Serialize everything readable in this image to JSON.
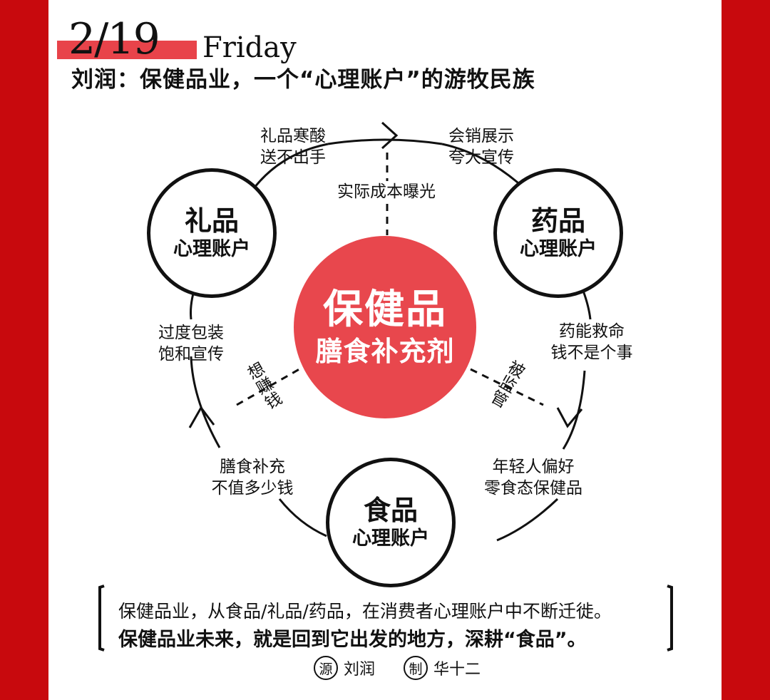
{
  "header": {
    "date": "2/19",
    "weekday": "Friday",
    "title": "刘润：保健品业，一个“心理账户”的游牧民族"
  },
  "center": {
    "title": "保健品",
    "subtitle": "膳食补充剂"
  },
  "nodes": {
    "gift": {
      "title": "礼品",
      "subtitle": "心理账户"
    },
    "medicine": {
      "title": "药品",
      "subtitle": "心理账户"
    },
    "food": {
      "title": "食品",
      "subtitle": "心理账户"
    }
  },
  "labels": {
    "gift_to_medicine": [
      "礼品寒酸",
      "送不出手"
    ],
    "medicine_from_gift": [
      "会销展示",
      "夸大宣传"
    ],
    "top_dashed": "实际成本曝光",
    "medicine_to_food": [
      "药能救命",
      "钱不是个事"
    ],
    "food_from_medicine": [
      "年轻人偏好",
      "零食态保健品"
    ],
    "food_to_gift": [
      "膳食补充",
      "不值多少钱"
    ],
    "gift_from_food": [
      "过度包装",
      "饱和宣传"
    ],
    "left_dashed": "想赚钱",
    "right_dashed": "被监管"
  },
  "summary": {
    "line1": "保健品业，从食品/礼品/药品，在消费者心理账户中不断迁徙。",
    "line2": "保健品业未来，就是回到它出发的地方，深耕“食品”。"
  },
  "credits": {
    "source_mark": "源",
    "source": "刘润",
    "maker_mark": "制",
    "maker": "华十二"
  },
  "colors": {
    "frame_red": "#c8090d",
    "accent_red": "#e8474d"
  }
}
